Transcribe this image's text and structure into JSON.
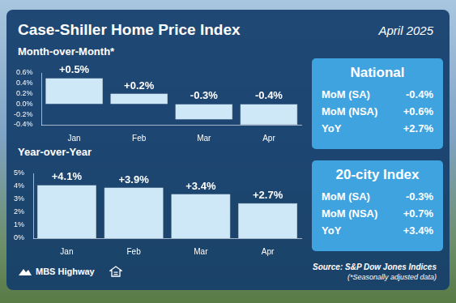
{
  "title": "Case-Shiller Home Price Index",
  "date": "April 2025",
  "chart_data": [
    {
      "type": "bar",
      "title": "Month-over-Month*",
      "categories": [
        "Jan",
        "Feb",
        "Mar",
        "Apr"
      ],
      "values": [
        0.5,
        0.2,
        -0.3,
        -0.4
      ],
      "value_labels": [
        "+0.5%",
        "+0.2%",
        "-0.3%",
        "-0.4%"
      ],
      "color": "#cfe8f8",
      "ylim": [
        -0.4,
        0.6
      ],
      "yticks": [
        {
          "value": -0.4,
          "label": "-0.4%"
        },
        {
          "value": -0.2,
          "label": "-0.2%"
        },
        {
          "value": 0,
          "label": "0.0%"
        },
        {
          "value": 0.2,
          "label": "0.2%"
        },
        {
          "value": 0.4,
          "label": "0.4%"
        },
        {
          "value": 0.6,
          "label": "0.6%"
        }
      ],
      "grid": false,
      "data_labels": true
    },
    {
      "type": "bar",
      "title": "Year-over-Year",
      "categories": [
        "Jan",
        "Feb",
        "Mar",
        "Apr"
      ],
      "values": [
        4.1,
        3.9,
        3.4,
        2.7
      ],
      "value_labels": [
        "+4.1%",
        "+3.9%",
        "+3.4%",
        "+2.7%"
      ],
      "color": "#cfe8f8",
      "ylim": [
        0,
        5
      ],
      "yticks": [
        {
          "value": 0,
          "label": "0%"
        },
        {
          "value": 1,
          "label": "1%"
        },
        {
          "value": 2,
          "label": "2%"
        },
        {
          "value": 3,
          "label": "3%"
        },
        {
          "value": 4,
          "label": "4%"
        },
        {
          "value": 5,
          "label": "5%"
        }
      ],
      "grid": false,
      "data_labels": true
    }
  ],
  "panels": [
    {
      "title": "National",
      "rows": [
        [
          "MoM (SA)",
          "-0.4%"
        ],
        [
          "MoM (NSA)",
          "+0.6%"
        ],
        [
          "YoY",
          "+2.7%"
        ]
      ]
    },
    {
      "title": "20-city Index",
      "rows": [
        [
          "MoM (SA)",
          "-0.3%"
        ],
        [
          "MoM (NSA)",
          "+0.7%"
        ],
        [
          "YoY",
          "+3.4%"
        ]
      ]
    }
  ],
  "source": "Source: S&P Dow Jones Indices",
  "footnote": "(*Seasonally adjusted data)",
  "logo": "MBS Highway"
}
